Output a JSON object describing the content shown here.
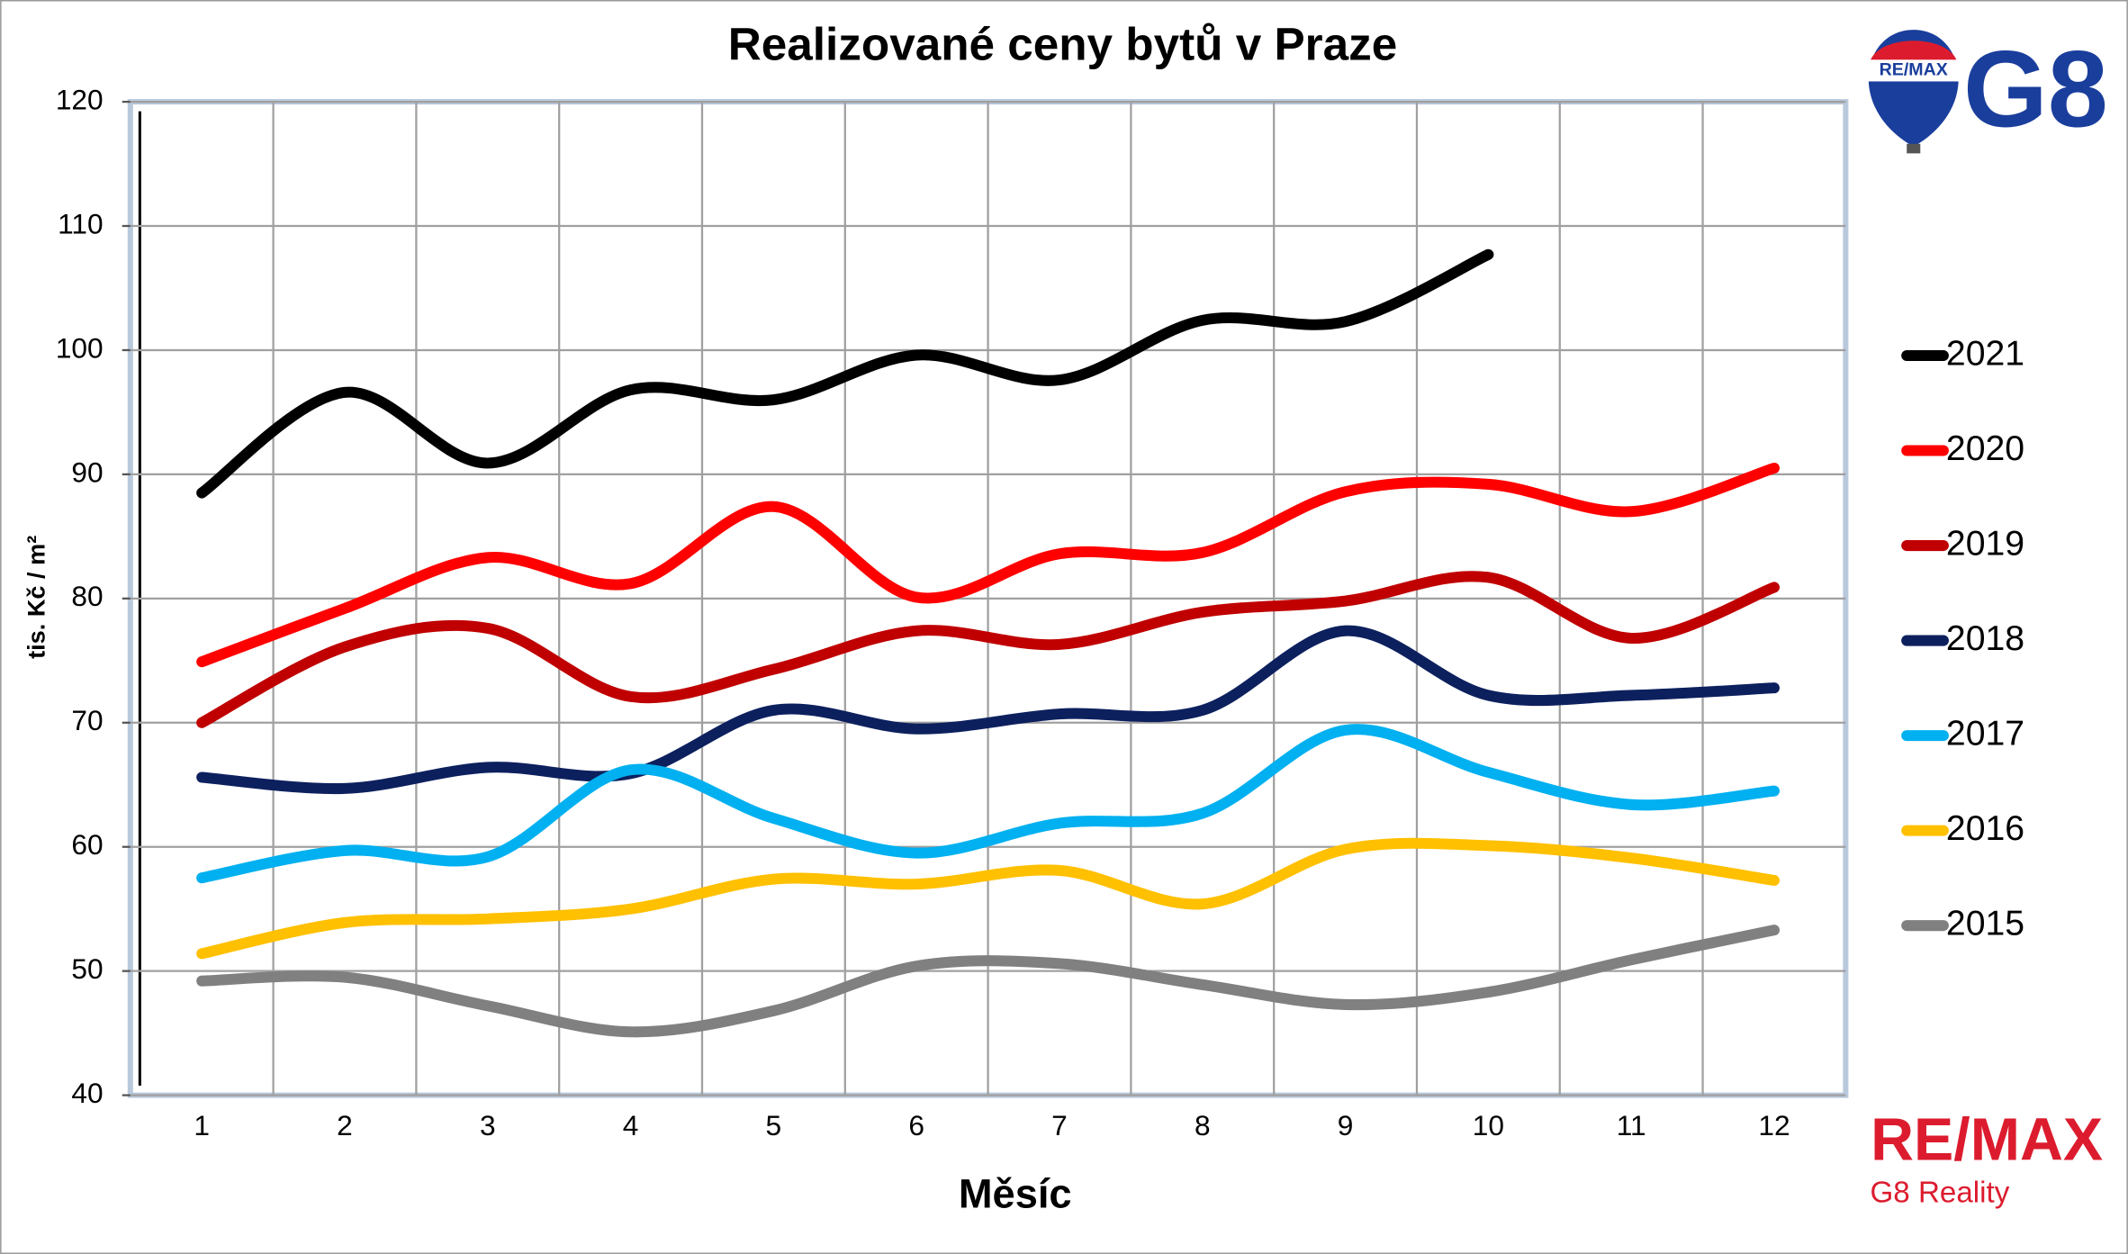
{
  "chart_data": {
    "type": "line",
    "title": "Realizované ceny bytů v Praze",
    "x_label": "Měsíc",
    "y_label": "tis. Kč / m²",
    "categories": [
      "1",
      "2",
      "3",
      "4",
      "5",
      "6",
      "7",
      "8",
      "9",
      "10",
      "11",
      "12"
    ],
    "ylim": [
      40,
      120
    ],
    "yticks": [
      40,
      50,
      60,
      70,
      80,
      90,
      100,
      110,
      120
    ],
    "grid": true,
    "legend": "right",
    "series": [
      {
        "name": "2021",
        "color": "#000000",
        "values": [
          88.5,
          96.6,
          90.9,
          96.8,
          96.0,
          99.6,
          97.6,
          102.4,
          102.3,
          107.7,
          null,
          null
        ]
      },
      {
        "name": "2020",
        "color": "#ff0000",
        "values": [
          74.9,
          79.2,
          83.3,
          81.2,
          87.4,
          80.1,
          83.6,
          83.7,
          88.6,
          89.2,
          87.0,
          90.5
        ]
      },
      {
        "name": "2019",
        "color": "#c00000",
        "values": [
          70.0,
          76.1,
          77.6,
          72.1,
          74.3,
          77.4,
          76.3,
          78.9,
          79.8,
          81.7,
          76.8,
          80.9
        ]
      },
      {
        "name": "2018",
        "color": "#0d205e",
        "values": [
          65.6,
          64.7,
          66.4,
          65.9,
          71.0,
          69.5,
          70.7,
          71.0,
          77.4,
          72.2,
          72.2,
          72.8
        ]
      },
      {
        "name": "2017",
        "color": "#00b0f0",
        "values": [
          57.5,
          59.7,
          59.2,
          66.2,
          62.3,
          59.5,
          61.9,
          62.7,
          69.4,
          66.0,
          63.4,
          64.5
        ]
      },
      {
        "name": "2016",
        "color": "#ffc000",
        "values": [
          51.4,
          53.9,
          54.2,
          55.0,
          57.4,
          57.0,
          58.1,
          55.4,
          59.8,
          60.1,
          59.1,
          57.3
        ]
      },
      {
        "name": "2015",
        "color": "#808080",
        "values": [
          49.2,
          49.5,
          47.2,
          45.1,
          46.8,
          50.4,
          50.6,
          48.9,
          47.3,
          48.3,
          50.9,
          53.3
        ]
      }
    ]
  },
  "logos": {
    "balloon": "RE/MAX",
    "brand": "G8",
    "bottom_brand": "RE/MAX",
    "bottom_sub": "G8 Reality"
  }
}
